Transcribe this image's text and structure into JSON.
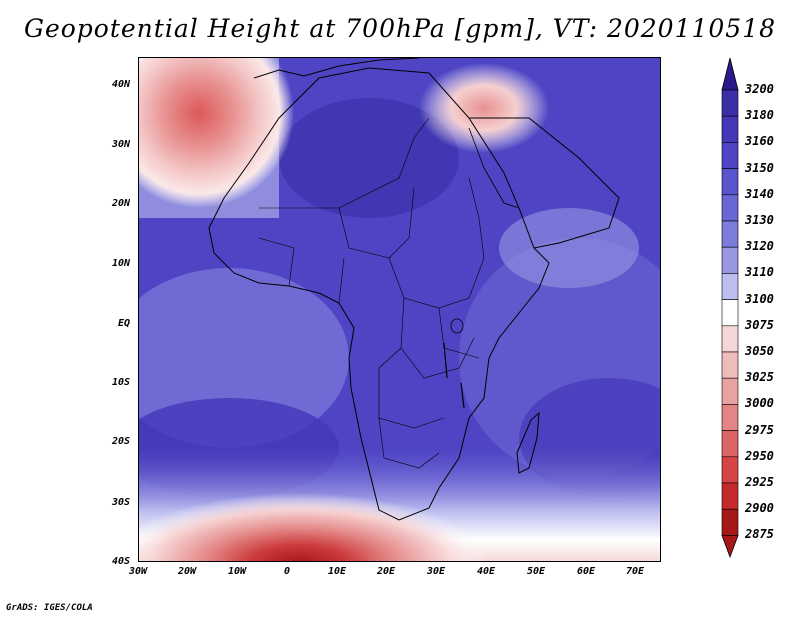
{
  "title": "Geopotential Height at 700hPa [gpm], VT: 2020110518",
  "footer": "GrADS: IGES/COLA",
  "axes": {
    "lat_labels": [
      "40N",
      "30N",
      "20N",
      "10N",
      "EQ",
      "10S",
      "20S",
      "30S",
      "40S"
    ],
    "lon_labels": [
      "30W",
      "20W",
      "10W",
      "0",
      "10E",
      "20E",
      "30E",
      "40E",
      "50E",
      "60E",
      "70E"
    ]
  },
  "colorbar": {
    "levels": [
      "3200",
      "3180",
      "3160",
      "3150",
      "3140",
      "3130",
      "3120",
      "3110",
      "3100",
      "3075",
      "3050",
      "3025",
      "3000",
      "2975",
      "2950",
      "2925",
      "2900",
      "2875"
    ],
    "colors": [
      "#2b1a8c",
      "#3a2fa6",
      "#4437b8",
      "#4f45c4",
      "#5a55cc",
      "#6a67d4",
      "#7d7bdc",
      "#9897e4",
      "#bdbdf0",
      "#ffffff",
      "#f4d6d6",
      "#efbcbc",
      "#e9a2a2",
      "#e38585",
      "#dc6464",
      "#d54545",
      "#c52a2a",
      "#a51818"
    ]
  },
  "colors": {
    "high": "#4437b8",
    "low": "#c52a2a",
    "coast": "#000000"
  }
}
